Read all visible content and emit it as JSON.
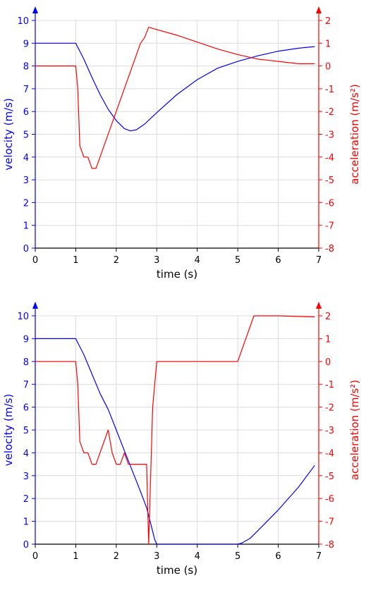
{
  "chart_data": [
    {
      "type": "line",
      "xlabel": "time (s)",
      "ylabel_left": "velocity (m/s)",
      "ylabel_right": "acceleration (m/s²)",
      "xlim": [
        0,
        7
      ],
      "ylim_left": [
        0,
        10
      ],
      "ylim_right": [
        -8,
        2
      ],
      "x_ticks": [
        0,
        1,
        2,
        3,
        4,
        5,
        6,
        7
      ],
      "y_ticks_left": [
        0,
        1,
        2,
        3,
        4,
        5,
        6,
        7,
        8,
        9,
        10
      ],
      "y_ticks_right": [
        -8,
        -7,
        -6,
        -5,
        -4,
        -3,
        -2,
        -1,
        0,
        1,
        2
      ],
      "grid": true,
      "colors": {
        "velocity": "#0000ff",
        "acceleration": "#ff0000"
      },
      "series": [
        {
          "axis": "left",
          "x": [
            0,
            1.0,
            1.2,
            1.4,
            1.6,
            1.8,
            2.0,
            2.2,
            2.35,
            2.5,
            2.7,
            3.0,
            3.5,
            4.0,
            4.5,
            5.0,
            5.5,
            6.0,
            6.5,
            6.9
          ],
          "y": [
            9.0,
            9.0,
            8.3,
            7.5,
            6.75,
            6.1,
            5.6,
            5.25,
            5.15,
            5.2,
            5.45,
            5.95,
            6.75,
            7.4,
            7.9,
            8.2,
            8.45,
            8.65,
            8.78,
            8.85
          ]
        },
        {
          "axis": "right",
          "x": [
            0,
            1.0,
            1.05,
            1.1,
            1.2,
            1.3,
            1.4,
            1.5,
            2.6,
            2.7,
            2.8,
            3.0,
            3.5,
            4.0,
            4.5,
            5.0,
            5.5,
            6.0,
            6.5,
            6.9
          ],
          "y": [
            0,
            0,
            -1.0,
            -3.5,
            -4.0,
            -4.0,
            -4.5,
            -4.5,
            1.0,
            1.25,
            1.7,
            1.6,
            1.35,
            1.05,
            0.75,
            0.5,
            0.3,
            0.2,
            0.1,
            0.1
          ]
        }
      ]
    },
    {
      "type": "line",
      "xlabel": "time (s)",
      "ylabel_left": "velocity (m/s)",
      "ylabel_right": "acceleration (m/s²)",
      "xlim": [
        0,
        7
      ],
      "ylim_left": [
        0,
        10
      ],
      "ylim_right": [
        -8,
        2
      ],
      "x_ticks": [
        0,
        1,
        2,
        3,
        4,
        5,
        6,
        7
      ],
      "y_ticks_left": [
        0,
        1,
        2,
        3,
        4,
        5,
        6,
        7,
        8,
        9,
        10
      ],
      "y_ticks_right": [
        -8,
        -7,
        -6,
        -5,
        -4,
        -3,
        -2,
        -1,
        0,
        1,
        2
      ],
      "grid": true,
      "colors": {
        "velocity": "#0000ff",
        "acceleration": "#ff0000"
      },
      "series": [
        {
          "axis": "left",
          "x": [
            0,
            1.0,
            1.2,
            1.4,
            1.6,
            1.8,
            2.0,
            2.2,
            2.4,
            2.6,
            2.75,
            2.85,
            2.95,
            3.0,
            3.5,
            4.0,
            4.5,
            5.0,
            5.1,
            5.3,
            5.5,
            6.0,
            6.5,
            6.9
          ],
          "y": [
            9.0,
            9.0,
            8.3,
            7.45,
            6.6,
            5.9,
            5.0,
            4.1,
            3.2,
            2.3,
            1.6,
            0.9,
            0.2,
            0,
            0,
            0,
            0,
            0,
            0.05,
            0.25,
            0.6,
            1.5,
            2.5,
            3.45
          ]
        },
        {
          "axis": "right",
          "x": [
            0,
            1.0,
            1.05,
            1.1,
            1.2,
            1.3,
            1.4,
            1.5,
            1.8,
            1.9,
            2.0,
            2.1,
            2.2,
            2.3,
            2.75,
            2.8,
            2.9,
            3.0,
            5.0,
            5.4,
            6.0,
            6.9
          ],
          "y": [
            0,
            0,
            -1.0,
            -3.5,
            -4.0,
            -4.0,
            -4.5,
            -4.5,
            -3.0,
            -4.0,
            -4.5,
            -4.5,
            -4.0,
            -4.5,
            -4.5,
            -8.0,
            -2.0,
            0,
            0,
            2.0,
            2.0,
            1.95
          ]
        }
      ]
    }
  ]
}
